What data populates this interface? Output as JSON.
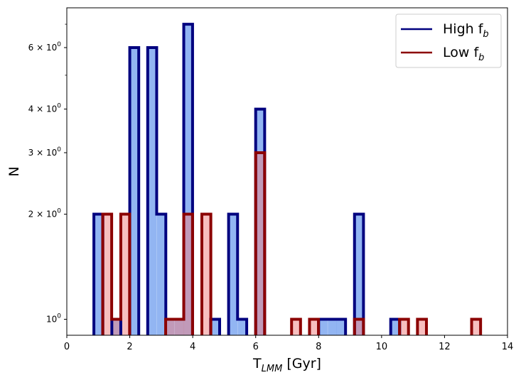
{
  "chart_data": {
    "type": "histogram",
    "xlabel_main": "T",
    "xlabel_sub": "LMM",
    "xlabel_unit": " [Gyr]",
    "ylabel": "N",
    "x_ticks": [
      "0",
      "2",
      "4",
      "6",
      "8",
      "10",
      "12",
      "14"
    ],
    "x_tick_values": [
      0,
      2,
      4,
      6,
      8,
      10,
      12,
      14
    ],
    "xlim": [
      0,
      14
    ],
    "ylim": [
      0.9,
      7.8
    ],
    "y_scale": "log",
    "y_ticks": [
      {
        "value": 1,
        "base": "10",
        "exp": "0",
        "coef": ""
      },
      {
        "value": 2,
        "base": "10",
        "exp": "0",
        "coef": "2 × "
      },
      {
        "value": 3,
        "base": "10",
        "exp": "0",
        "coef": "3 × "
      },
      {
        "value": 4,
        "base": "10",
        "exp": "0",
        "coef": "4 × "
      },
      {
        "value": 6,
        "base": "10",
        "exp": "0",
        "coef": "6 × "
      }
    ],
    "y_minor_ticks": [
      5,
      7
    ],
    "bin_width": 0.285,
    "legend_placement": "top-right",
    "series": [
      {
        "name_main": "High f",
        "name_sub": "b",
        "edge_color": "#00007f",
        "fill_color": "#6495ed",
        "bins": [
          {
            "x0": 0.86,
            "v": 2
          },
          {
            "x0": 1.43,
            "v": 1
          },
          {
            "x0": 2.0,
            "v": 6
          },
          {
            "x0": 2.57,
            "v": 6
          },
          {
            "x0": 2.86,
            "v": 2
          },
          {
            "x0": 3.14,
            "v": 1
          },
          {
            "x0": 3.43,
            "v": 1
          },
          {
            "x0": 3.71,
            "v": 7
          },
          {
            "x0": 4.57,
            "v": 1
          },
          {
            "x0": 5.14,
            "v": 2
          },
          {
            "x0": 5.43,
            "v": 1
          },
          {
            "x0": 6.0,
            "v": 4
          },
          {
            "x0": 8.0,
            "v": 1
          },
          {
            "x0": 8.29,
            "v": 1
          },
          {
            "x0": 8.57,
            "v": 1
          },
          {
            "x0": 9.14,
            "v": 2
          },
          {
            "x0": 10.29,
            "v": 1
          }
        ]
      },
      {
        "name_main": "Low f",
        "name_sub": "b",
        "edge_color": "#8b0000",
        "fill_color": "#f08080",
        "bins": [
          {
            "x0": 1.14,
            "v": 2
          },
          {
            "x0": 1.43,
            "v": 1
          },
          {
            "x0": 1.71,
            "v": 2
          },
          {
            "x0": 3.14,
            "v": 1
          },
          {
            "x0": 3.43,
            "v": 1
          },
          {
            "x0": 3.71,
            "v": 2
          },
          {
            "x0": 4.29,
            "v": 2
          },
          {
            "x0": 6.0,
            "v": 3
          },
          {
            "x0": 7.14,
            "v": 1
          },
          {
            "x0": 7.71,
            "v": 1
          },
          {
            "x0": 9.14,
            "v": 1
          },
          {
            "x0": 10.57,
            "v": 1
          },
          {
            "x0": 11.14,
            "v": 1
          },
          {
            "x0": 12.86,
            "v": 1
          }
        ]
      }
    ]
  }
}
